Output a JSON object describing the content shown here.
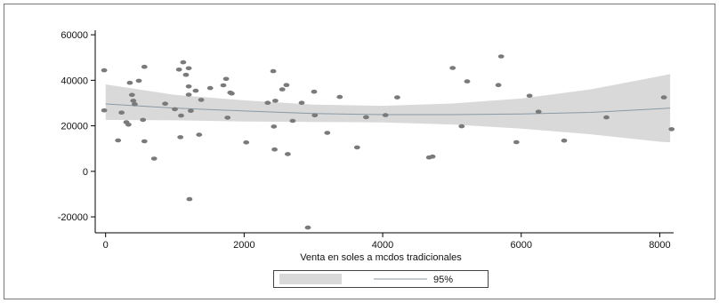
{
  "chart_data": {
    "type": "scatter",
    "title": "",
    "xlabel": "Venta en soles a mcdos tradicionales",
    "ylabel": "",
    "xlim": [
      -150,
      8200
    ],
    "ylim": [
      -27000,
      62000
    ],
    "x_ticks": [
      0,
      2000,
      4000,
      6000,
      8000
    ],
    "y_ticks": [
      -20000,
      0,
      20000,
      40000,
      60000
    ],
    "x_tick_labels": [
      "0",
      "2000",
      "4000",
      "6000",
      "8000"
    ],
    "y_tick_labels": [
      "-20000",
      "0",
      "20000",
      "40000",
      "60000"
    ],
    "grid": false,
    "legend_placement": "bottom-center",
    "colors": {
      "points": "#7a7a7a",
      "band": "#d9d9d9",
      "fit": "#8a9aa6"
    },
    "series": [
      {
        "type": "scatter",
        "points": [
          [
            -20,
            44400
          ],
          [
            -20,
            26800
          ],
          [
            180,
            13600
          ],
          [
            230,
            25800
          ],
          [
            300,
            21600
          ],
          [
            330,
            20500
          ],
          [
            350,
            38900
          ],
          [
            380,
            33600
          ],
          [
            400,
            31000
          ],
          [
            420,
            29500
          ],
          [
            480,
            39800
          ],
          [
            540,
            22600
          ],
          [
            560,
            45900
          ],
          [
            560,
            13200
          ],
          [
            700,
            5600
          ],
          [
            860,
            29700
          ],
          [
            1000,
            27300
          ],
          [
            1060,
            44700
          ],
          [
            1080,
            15000
          ],
          [
            1090,
            24500
          ],
          [
            1120,
            47900
          ],
          [
            1160,
            42400
          ],
          [
            1200,
            45300
          ],
          [
            1200,
            37300
          ],
          [
            1200,
            33700
          ],
          [
            1210,
            -12200
          ],
          [
            1230,
            26600
          ],
          [
            1300,
            35400
          ],
          [
            1350,
            16100
          ],
          [
            1380,
            31400
          ],
          [
            1510,
            36600
          ],
          [
            1700,
            37800
          ],
          [
            1740,
            40600
          ],
          [
            1760,
            23600
          ],
          [
            1800,
            34600
          ],
          [
            1820,
            34200
          ],
          [
            2030,
            12700
          ],
          [
            2340,
            30100
          ],
          [
            2420,
            44000
          ],
          [
            2430,
            19700
          ],
          [
            2440,
            9600
          ],
          [
            2450,
            31000
          ],
          [
            2550,
            36000
          ],
          [
            2610,
            37900
          ],
          [
            2630,
            7600
          ],
          [
            2700,
            22200
          ],
          [
            2830,
            30100
          ],
          [
            2920,
            -24700
          ],
          [
            3010,
            35000
          ],
          [
            3020,
            24600
          ],
          [
            3200,
            16900
          ],
          [
            3380,
            32700
          ],
          [
            3630,
            10500
          ],
          [
            3760,
            23800
          ],
          [
            4040,
            24700
          ],
          [
            4210,
            32500
          ],
          [
            4670,
            6100
          ],
          [
            4720,
            6500
          ],
          [
            5010,
            45400
          ],
          [
            5140,
            19800
          ],
          [
            5220,
            39500
          ],
          [
            5670,
            37900
          ],
          [
            5710,
            50500
          ],
          [
            5930,
            12800
          ],
          [
            6120,
            33200
          ],
          [
            6250,
            26200
          ],
          [
            6620,
            13500
          ],
          [
            7230,
            23700
          ],
          [
            8060,
            32500
          ],
          [
            8170,
            18500
          ]
        ]
      },
      {
        "type": "line",
        "name": "95%",
        "x": [
          0,
          1000,
          2000,
          3000,
          4000,
          5000,
          6000,
          7000,
          8000,
          8150
        ],
        "y": [
          29600,
          27800,
          26500,
          25400,
          24900,
          24900,
          25200,
          25900,
          27500,
          27800
        ],
        "band_upper": [
          38200,
          33600,
          31200,
          29300,
          28800,
          29800,
          32000,
          36000,
          41800,
          42700
        ],
        "band_lower": [
          22600,
          22400,
          21900,
          21700,
          21500,
          20600,
          18800,
          16300,
          13000,
          12700
        ]
      }
    ]
  }
}
